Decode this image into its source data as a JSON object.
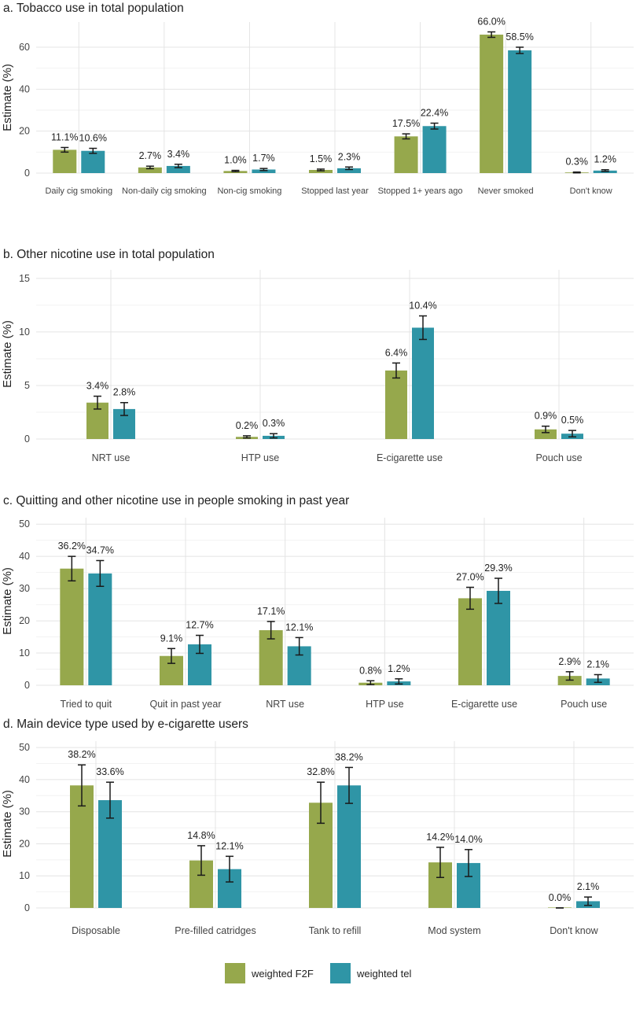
{
  "legend": {
    "entries": [
      {
        "name": "weighted F2F",
        "color": "#96a84c"
      },
      {
        "name": "weighted tel",
        "color": "#2f95a6"
      }
    ]
  },
  "chart_data": [
    {
      "type": "bar",
      "title": "a. Tobacco use in total population",
      "ylabel": "Estimate (%)",
      "ylim": [
        0,
        72
      ],
      "yticks": [
        0,
        20,
        40,
        60
      ],
      "categories": [
        "Daily cig smoking",
        "Non-daily cig smoking",
        "Non-cig smoking",
        "Stopped last year",
        "Stopped 1+ years ago",
        "Never smoked",
        "Don't know"
      ],
      "series": [
        {
          "name": "weighted F2F",
          "values": [
            11.1,
            2.7,
            1.0,
            1.5,
            17.5,
            66.0,
            0.3
          ],
          "labels": [
            "11.1%",
            "2.7%",
            "1.0%",
            "1.5%",
            "17.5%",
            "66.0%",
            "0.3%"
          ],
          "ci": [
            [
              10.0,
              12.2
            ],
            [
              2.1,
              3.3
            ],
            [
              0.7,
              1.3
            ],
            [
              1.1,
              1.9
            ],
            [
              16.3,
              18.7
            ],
            [
              64.7,
              67.3
            ],
            [
              0.1,
              0.5
            ]
          ]
        },
        {
          "name": "weighted tel",
          "values": [
            10.6,
            3.4,
            1.7,
            2.3,
            22.4,
            58.5,
            1.2
          ],
          "labels": [
            "10.6%",
            "3.4%",
            "1.7%",
            "2.3%",
            "22.4%",
            "58.5%",
            "1.2%"
          ],
          "ci": [
            [
              9.4,
              11.8
            ],
            [
              2.6,
              4.2
            ],
            [
              1.2,
              2.2
            ],
            [
              1.7,
              2.9
            ],
            [
              21.0,
              23.8
            ],
            [
              57.0,
              60.0
            ],
            [
              0.8,
              1.6
            ]
          ]
        }
      ],
      "legend": "bottom",
      "grid": true
    },
    {
      "type": "bar",
      "title": "b. Other nicotine use in total population",
      "ylabel": "Estimate (%)",
      "ylim": [
        0,
        15.8
      ],
      "yticks": [
        0,
        5,
        10,
        15
      ],
      "categories": [
        "NRT use",
        "HTP use",
        "E-cigarette use",
        "Pouch use"
      ],
      "series": [
        {
          "name": "weighted F2F",
          "values": [
            3.4,
            0.2,
            6.4,
            0.9
          ],
          "labels": [
            "3.4%",
            "0.2%",
            "6.4%",
            "0.9%"
          ],
          "ci": [
            [
              2.8,
              4.0
            ],
            [
              0.1,
              0.3
            ],
            [
              5.7,
              7.1
            ],
            [
              0.6,
              1.2
            ]
          ]
        },
        {
          "name": "weighted tel",
          "values": [
            2.8,
            0.3,
            10.4,
            0.5
          ],
          "labels": [
            "2.8%",
            "0.3%",
            "10.4%",
            "0.5%"
          ],
          "ci": [
            [
              2.2,
              3.4
            ],
            [
              0.1,
              0.5
            ],
            [
              9.3,
              11.5
            ],
            [
              0.2,
              0.8
            ]
          ]
        }
      ],
      "legend": "bottom",
      "grid": true
    },
    {
      "type": "bar",
      "title": "c. Quitting and other nicotine use in people smoking in past year",
      "ylabel": "Estimate (%)",
      "ylim": [
        0,
        52
      ],
      "yticks": [
        0,
        10,
        20,
        30,
        40,
        50
      ],
      "categories": [
        "Tried to quit",
        "Quit in past year",
        "NRT use",
        "HTP use",
        "E-cigarette use",
        "Pouch use"
      ],
      "series": [
        {
          "name": "weighted F2F",
          "values": [
            36.2,
            9.1,
            17.1,
            0.8,
            27.0,
            2.9
          ],
          "labels": [
            "36.2%",
            "9.1%",
            "17.1%",
            "0.8%",
            "27.0%",
            "2.9%"
          ],
          "ci": [
            [
              32.4,
              40.0
            ],
            [
              6.8,
              11.4
            ],
            [
              14.4,
              19.8
            ],
            [
              0.2,
              1.4
            ],
            [
              23.6,
              30.4
            ],
            [
              1.6,
              4.2
            ]
          ]
        },
        {
          "name": "weighted tel",
          "values": [
            34.7,
            12.7,
            12.1,
            1.2,
            29.3,
            2.1
          ],
          "labels": [
            "34.7%",
            "12.7%",
            "12.1%",
            "1.2%",
            "29.3%",
            "2.1%"
          ],
          "ci": [
            [
              30.7,
              38.7
            ],
            [
              9.9,
              15.5
            ],
            [
              9.4,
              14.8
            ],
            [
              0.4,
              2.0
            ],
            [
              25.4,
              33.2
            ],
            [
              0.9,
              3.3
            ]
          ]
        }
      ],
      "legend": "bottom",
      "grid": true
    },
    {
      "type": "bar",
      "title": "d. Main device type used by e-cigarette users",
      "ylabel": "Estimate (%)",
      "ylim": [
        0,
        52
      ],
      "yticks": [
        0,
        10,
        20,
        30,
        40,
        50
      ],
      "categories": [
        "Disposable",
        "Pre-filled catridges",
        "Tank to refill",
        "Mod system",
        "Don't know"
      ],
      "series": [
        {
          "name": "weighted F2F",
          "values": [
            38.2,
            14.8,
            32.8,
            14.2,
            0.0
          ],
          "labels": [
            "38.2%",
            "14.8%",
            "32.8%",
            "14.2%",
            "0.0%"
          ],
          "ci": [
            [
              31.8,
              44.6
            ],
            [
              10.2,
              19.4
            ],
            [
              26.4,
              39.2
            ],
            [
              9.5,
              18.9
            ],
            [
              0.0,
              0.0
            ]
          ]
        },
        {
          "name": "weighted tel",
          "values": [
            33.6,
            12.1,
            38.2,
            14.0,
            2.1
          ],
          "labels": [
            "33.6%",
            "12.1%",
            "38.2%",
            "14.0%",
            "2.1%"
          ],
          "ci": [
            [
              28.0,
              39.2
            ],
            [
              8.1,
              16.1
            ],
            [
              32.6,
              43.8
            ],
            [
              9.8,
              18.2
            ],
            [
              0.8,
              3.4
            ]
          ]
        }
      ],
      "legend": "bottom",
      "grid": true
    }
  ]
}
